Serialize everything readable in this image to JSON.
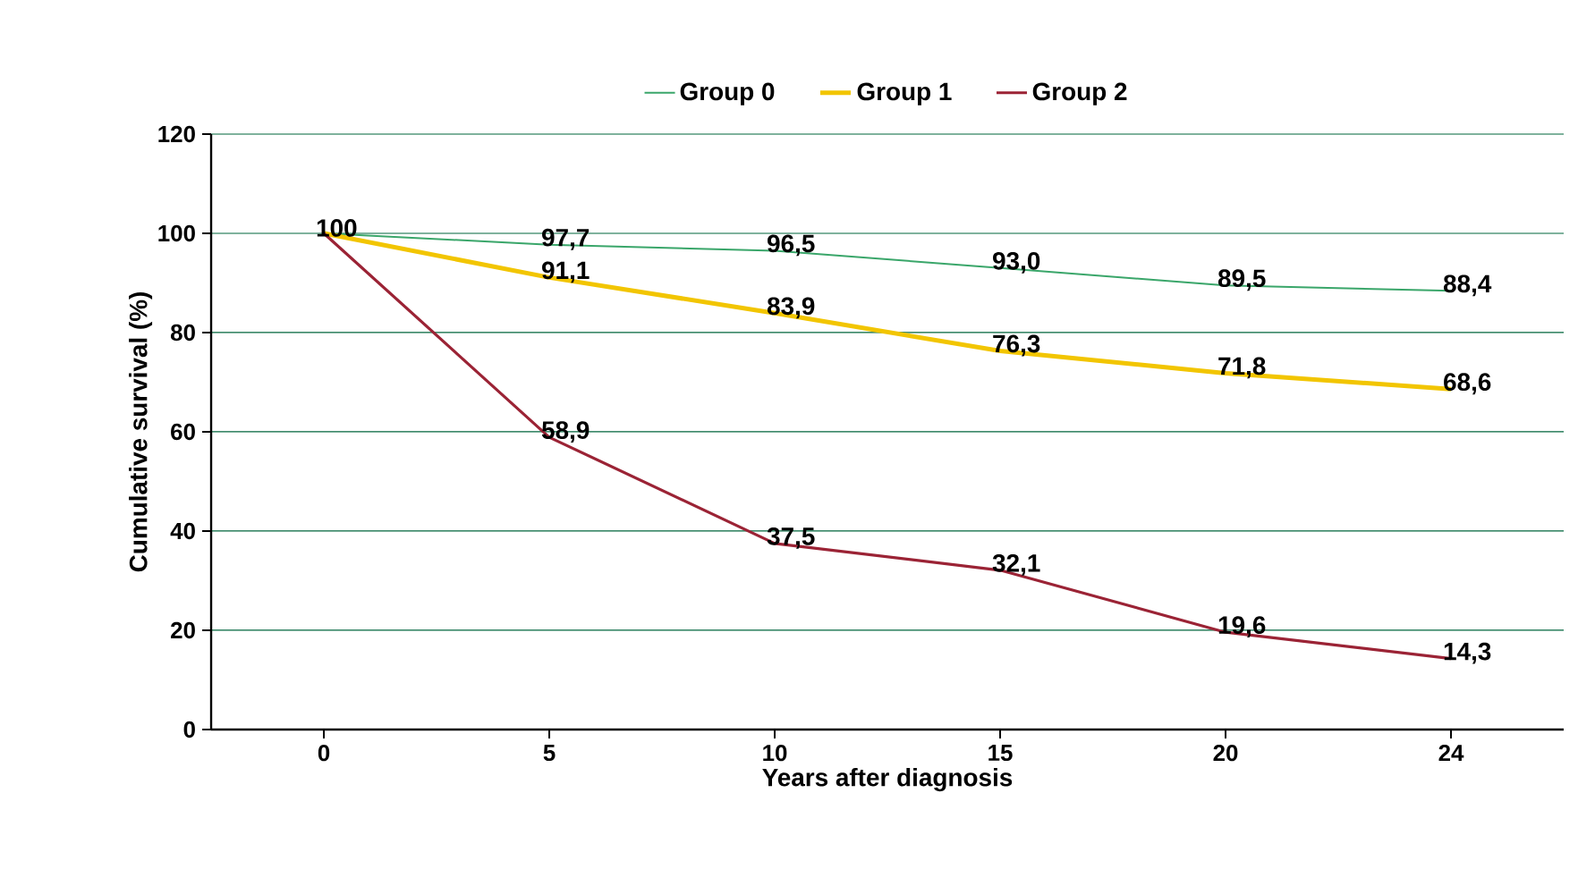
{
  "chart_data": {
    "type": "line",
    "xlabel": "Years after diagnosis",
    "ylabel": "Cumulative survival (%)",
    "categories": [
      "0",
      "5",
      "10",
      "15",
      "20",
      "24"
    ],
    "series": [
      {
        "name": "Group 0",
        "color": "#3aa66a",
        "values": [
          100,
          97.7,
          96.5,
          93.0,
          89.5,
          88.4
        ],
        "value_labels": [
          null,
          "97,7",
          "96,5",
          "93,0",
          "89,5",
          "88,4"
        ]
      },
      {
        "name": "Group 1",
        "color": "#f2c500",
        "values": [
          100,
          91.1,
          83.9,
          76.3,
          71.8,
          68.6
        ],
        "value_labels": [
          null,
          "91,1",
          "83,9",
          "76,3",
          "71,8",
          "68,6"
        ]
      },
      {
        "name": "Group 2",
        "color": "#9b2335",
        "values": [
          100,
          58.9,
          37.5,
          32.1,
          19.6,
          14.3
        ],
        "value_labels": [
          "100",
          "58,9",
          "37,5",
          "32,1",
          "19,6",
          "14,3"
        ]
      }
    ],
    "ylim": [
      0,
      120
    ],
    "yticks": [
      0,
      20,
      40,
      60,
      80,
      100,
      120
    ],
    "grid": "y",
    "legend": "top",
    "marker": "none",
    "line_style": "solid"
  }
}
